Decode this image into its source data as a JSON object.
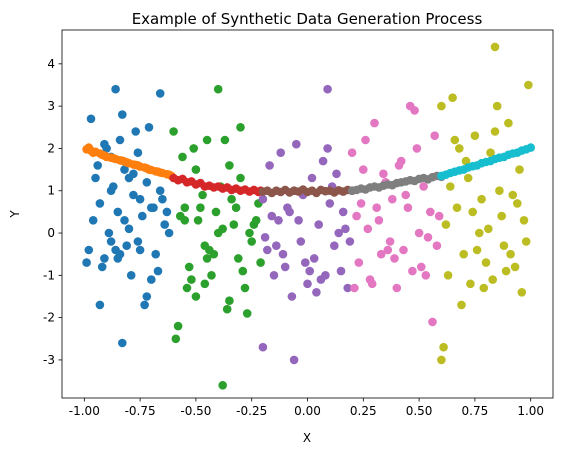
{
  "chart_data": {
    "type": "scatter",
    "title": "Example of Synthetic Data Generation Process",
    "xlabel": "X",
    "ylabel": "Y",
    "xlim": [
      -1.1,
      1.1
    ],
    "ylim": [
      -3.9,
      4.8
    ],
    "xticks": [
      "-1.00",
      "-0.75",
      "-0.50",
      "-0.25",
      "0.00",
      "0.25",
      "0.50",
      "0.75",
      "1.00"
    ],
    "yticks": [
      "-3",
      "-2",
      "-1",
      "0",
      "1",
      "2",
      "3",
      "4"
    ],
    "grid": false,
    "legend": "none",
    "series": [
      {
        "color": "#1f77b4",
        "x": [
          -0.99,
          -0.97,
          -0.95,
          -0.93,
          -0.91,
          -0.9,
          -0.88,
          -0.86,
          -0.85,
          -0.83,
          -0.82,
          -0.8,
          -0.79,
          -0.77,
          -0.75,
          -0.73,
          -0.72,
          -0.7,
          -0.68,
          -0.66,
          -0.64,
          -0.62,
          -0.96,
          -0.92,
          -0.87,
          -0.84,
          -0.81,
          -0.78,
          -0.74,
          -0.71,
          -0.67,
          -0.63,
          -0.98,
          -0.94,
          -0.89,
          -0.84,
          -0.8,
          -0.76,
          -0.7,
          -0.65,
          -0.93,
          -0.88,
          -0.82,
          -0.75,
          -0.69,
          -0.91,
          -0.85,
          -0.78,
          -0.72,
          -0.86,
          -0.66,
          -0.88,
          -0.76,
          -0.83
        ],
        "y": [
          -0.7,
          2.7,
          1.3,
          0.7,
          -0.6,
          2.0,
          1.0,
          -0.4,
          0.5,
          2.8,
          1.5,
          0.1,
          -1.0,
          2.4,
          0.8,
          -1.7,
          1.2,
          0.6,
          -0.5,
          1.0,
          0.2,
          0.0,
          0.3,
          -0.8,
          1.1,
          2.2,
          -0.3,
          0.9,
          0.4,
          2.5,
          -0.9,
          0.5,
          -0.4,
          1.6,
          0.0,
          -0.5,
          1.3,
          -0.2,
          -1.1,
          0.8,
          -1.7,
          1.8,
          0.3,
          -0.4,
          0.6,
          2.1,
          -0.6,
          1.4,
          -1.5,
          3.4,
          3.3,
          -0.2,
          1.9,
          -2.6
        ]
      },
      {
        "color": "#ff7f0e",
        "x": [
          -0.99,
          -0.98,
          -0.97,
          -0.96,
          -0.95,
          -0.93,
          -0.92,
          -0.91,
          -0.9,
          -0.88,
          -0.87,
          -0.86,
          -0.84,
          -0.83,
          -0.82,
          -0.81,
          -0.8,
          -0.78,
          -0.77,
          -0.76,
          -0.75,
          -0.73,
          -0.72,
          -0.71,
          -0.7,
          -0.68,
          -0.67,
          -0.66,
          -0.65,
          -0.63,
          -0.62,
          -0.61
        ],
        "y": [
          1.98,
          2.02,
          1.95,
          1.9,
          1.92,
          1.88,
          1.85,
          1.83,
          1.8,
          1.78,
          1.77,
          1.75,
          1.72,
          1.71,
          1.69,
          1.67,
          1.65,
          1.62,
          1.61,
          1.6,
          1.57,
          1.55,
          1.53,
          1.5,
          1.49,
          1.46,
          1.45,
          1.43,
          1.42,
          1.39,
          1.38,
          1.35
        ]
      },
      {
        "color": "#2ca02c",
        "x": [
          -0.6,
          -0.58,
          -0.56,
          -0.55,
          -0.53,
          -0.51,
          -0.5,
          -0.48,
          -0.46,
          -0.45,
          -0.43,
          -0.41,
          -0.4,
          -0.38,
          -0.36,
          -0.35,
          -0.33,
          -0.31,
          -0.3,
          -0.28,
          -0.26,
          -0.25,
          -0.23,
          -0.21,
          -0.57,
          -0.52,
          -0.47,
          -0.42,
          -0.37,
          -0.32,
          -0.27,
          -0.22,
          -0.54,
          -0.49,
          -0.44,
          -0.39,
          -0.34,
          -0.29,
          -0.24,
          -0.59,
          -0.5,
          -0.45,
          -0.4,
          -0.35,
          -0.3,
          -0.55,
          -0.46,
          -0.38
        ],
        "y": [
          2.4,
          -2.2,
          1.8,
          0.3,
          -0.8,
          2.0,
          -1.5,
          0.6,
          -0.3,
          2.2,
          -1.0,
          0.5,
          3.4,
          0.1,
          -1.8,
          1.6,
          0.2,
          -0.6,
          2.5,
          -1.3,
          0.0,
          -0.2,
          0.3,
          -0.7,
          0.4,
          -1.1,
          0.9,
          -0.5,
          2.2,
          0.6,
          -1.9,
          0.7,
          -1.3,
          0.3,
          -0.4,
          1.1,
          0.8,
          -0.9,
          0.2,
          -2.5,
          1.5,
          -0.6,
          0.0,
          -1.6,
          1.3,
          0.6,
          -1.2,
          -3.6
        ]
      },
      {
        "color": "#d62728",
        "x": [
          -0.6,
          -0.58,
          -0.56,
          -0.54,
          -0.52,
          -0.5,
          -0.48,
          -0.46,
          -0.44,
          -0.42,
          -0.4,
          -0.38,
          -0.36,
          -0.34,
          -0.32,
          -0.3,
          -0.28,
          -0.26,
          -0.24,
          -0.22,
          -0.21
        ],
        "y": [
          1.3,
          1.25,
          1.28,
          1.2,
          1.22,
          1.15,
          1.18,
          1.1,
          1.12,
          1.08,
          1.1,
          1.05,
          1.08,
          1.02,
          1.05,
          1.0,
          1.03,
          0.98,
          1.02,
          0.97,
          1.0
        ]
      },
      {
        "color": "#9467bd",
        "x": [
          -0.2,
          -0.18,
          -0.17,
          -0.15,
          -0.13,
          -0.12,
          -0.1,
          -0.08,
          -0.07,
          -0.05,
          -0.03,
          -0.02,
          0.0,
          0.02,
          0.03,
          0.05,
          0.07,
          0.08,
          0.1,
          0.12,
          0.13,
          0.15,
          0.17,
          0.18,
          -0.16,
          -0.11,
          -0.06,
          -0.01,
          0.04,
          0.09,
          0.14,
          0.19,
          -0.19,
          -0.09,
          0.01,
          0.11,
          -0.14,
          0.06,
          0.16,
          -0.04,
          -0.06,
          0.09,
          -0.2
        ],
        "y": [
          0.8,
          -0.4,
          1.6,
          -1.0,
          0.3,
          1.9,
          -0.8,
          0.5,
          -1.5,
          2.1,
          -0.2,
          0.9,
          -1.2,
          1.3,
          -0.6,
          0.2,
          1.7,
          -1.0,
          0.7,
          -0.3,
          1.4,
          -0.9,
          0.1,
          -1.3,
          0.4,
          -0.5,
          1.0,
          -0.7,
          -1.4,
          2.0,
          0.0,
          -0.2,
          -0.1,
          0.6,
          -0.9,
          1.1,
          -0.3,
          -1.1,
          0.5,
          0.3,
          -3.0,
          3.4,
          -2.7
        ]
      },
      {
        "color": "#8c564b",
        "x": [
          -0.2,
          -0.18,
          -0.16,
          -0.14,
          -0.12,
          -0.1,
          -0.08,
          -0.06,
          -0.04,
          -0.02,
          0.0,
          0.02,
          0.04,
          0.06,
          0.08,
          0.1,
          0.12,
          0.14,
          0.16,
          0.18,
          0.2
        ],
        "y": [
          0.98,
          1.0,
          0.95,
          1.0,
          0.97,
          1.02,
          0.96,
          1.0,
          0.98,
          1.03,
          0.97,
          1.0,
          0.95,
          1.02,
          0.99,
          1.0,
          0.96,
          1.01,
          0.98,
          1.02,
          1.0
        ]
      },
      {
        "color": "#e377c2",
        "x": [
          0.2,
          0.22,
          0.23,
          0.25,
          0.27,
          0.28,
          0.3,
          0.32,
          0.33,
          0.35,
          0.37,
          0.38,
          0.4,
          0.42,
          0.43,
          0.45,
          0.47,
          0.48,
          0.5,
          0.52,
          0.53,
          0.55,
          0.57,
          0.58,
          0.24,
          0.29,
          0.34,
          0.39,
          0.44,
          0.49,
          0.54,
          0.59,
          0.21,
          0.31,
          0.41,
          0.51,
          0.26,
          0.36,
          0.46,
          0.56
        ],
        "y": [
          1.9,
          0.4,
          -0.7,
          1.5,
          0.1,
          -1.1,
          2.6,
          0.3,
          -0.5,
          1.2,
          -0.2,
          0.8,
          -1.3,
          1.7,
          -0.4,
          0.6,
          -0.9,
          2.9,
          0.0,
          1.1,
          -1.0,
          0.5,
          2.3,
          -0.3,
          0.7,
          -1.2,
          1.4,
          -0.6,
          0.9,
          2.0,
          -0.1,
          0.4,
          -1.3,
          0.6,
          1.6,
          -0.8,
          2.2,
          -0.4,
          3.0,
          -2.1
        ]
      },
      {
        "color": "#7f7f7f",
        "x": [
          0.2,
          0.22,
          0.24,
          0.26,
          0.28,
          0.3,
          0.32,
          0.34,
          0.36,
          0.38,
          0.4,
          0.42,
          0.44,
          0.46,
          0.48,
          0.5,
          0.52,
          0.54,
          0.56,
          0.58,
          0.6
        ],
        "y": [
          1.0,
          1.02,
          1.05,
          1.03,
          1.08,
          1.1,
          1.08,
          1.12,
          1.15,
          1.13,
          1.18,
          1.2,
          1.22,
          1.25,
          1.23,
          1.28,
          1.3,
          1.27,
          1.32,
          1.35,
          1.33
        ]
      },
      {
        "color": "#bcbd22",
        "x": [
          0.6,
          0.62,
          0.63,
          0.65,
          0.67,
          0.68,
          0.7,
          0.72,
          0.73,
          0.75,
          0.77,
          0.78,
          0.8,
          0.82,
          0.83,
          0.85,
          0.87,
          0.88,
          0.9,
          0.92,
          0.93,
          0.95,
          0.97,
          0.98,
          0.64,
          0.69,
          0.74,
          0.79,
          0.84,
          0.89,
          0.94,
          0.99,
          0.61,
          0.71,
          0.81,
          0.91,
          0.66,
          0.76,
          0.86,
          0.96,
          0.6,
          0.84
        ],
        "y": [
          3.0,
          0.2,
          -1.0,
          3.2,
          0.6,
          2.0,
          -0.5,
          1.3,
          -1.2,
          2.3,
          0.0,
          0.8,
          -0.7,
          1.9,
          -1.1,
          3.0,
          0.4,
          -0.3,
          2.6,
          0.9,
          -0.8,
          1.5,
          0.3,
          -0.2,
          1.1,
          -1.7,
          0.5,
          -1.3,
          2.4,
          -0.9,
          0.7,
          3.5,
          -2.7,
          1.7,
          0.1,
          -0.5,
          2.2,
          -0.4,
          1.0,
          -1.4,
          -3.0,
          4.4
        ]
      },
      {
        "color": "#17becf",
        "x": [
          0.6,
          0.62,
          0.64,
          0.66,
          0.68,
          0.7,
          0.72,
          0.74,
          0.76,
          0.78,
          0.8,
          0.82,
          0.84,
          0.86,
          0.88,
          0.9,
          0.92,
          0.94,
          0.96,
          0.98,
          1.0
        ],
        "y": [
          1.35,
          1.38,
          1.42,
          1.45,
          1.48,
          1.5,
          1.55,
          1.58,
          1.6,
          1.65,
          1.68,
          1.7,
          1.75,
          1.78,
          1.8,
          1.85,
          1.88,
          1.9,
          1.95,
          1.98,
          2.02
        ]
      }
    ]
  }
}
